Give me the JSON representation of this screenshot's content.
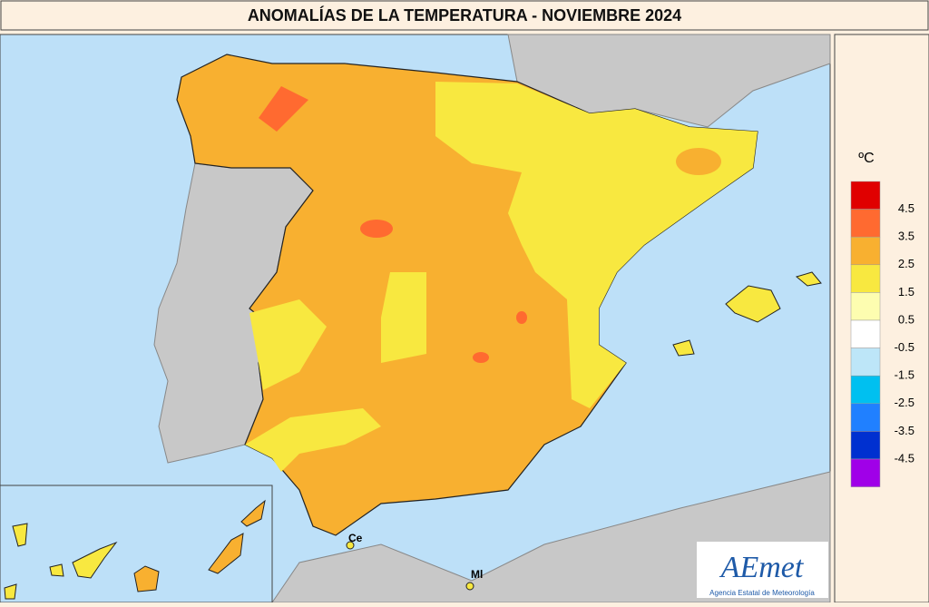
{
  "header": {
    "title": "ANOMALÍAS DE LA TEMPERATURA - NOVIEMBRE 2024"
  },
  "legend": {
    "unit": "ºC",
    "colors": [
      "#e00000",
      "#ff6a30",
      "#f8b030",
      "#f8e840",
      "#fdfdb0",
      "#ffffff",
      "#bde6f8",
      "#00c0f0",
      "#2080ff",
      "#0030d0",
      "#a000e8"
    ],
    "labels": [
      "4.5",
      "3.5",
      "2.5",
      "1.5",
      "0.5",
      "-0.5",
      "-1.5",
      "-2.5",
      "-3.5",
      "-4.5"
    ]
  },
  "map": {
    "labels": [
      "Ce",
      "Ml"
    ]
  },
  "logo": {
    "name": "AEmet",
    "subtitle": "Agencia Estatal de Meteorología"
  }
}
